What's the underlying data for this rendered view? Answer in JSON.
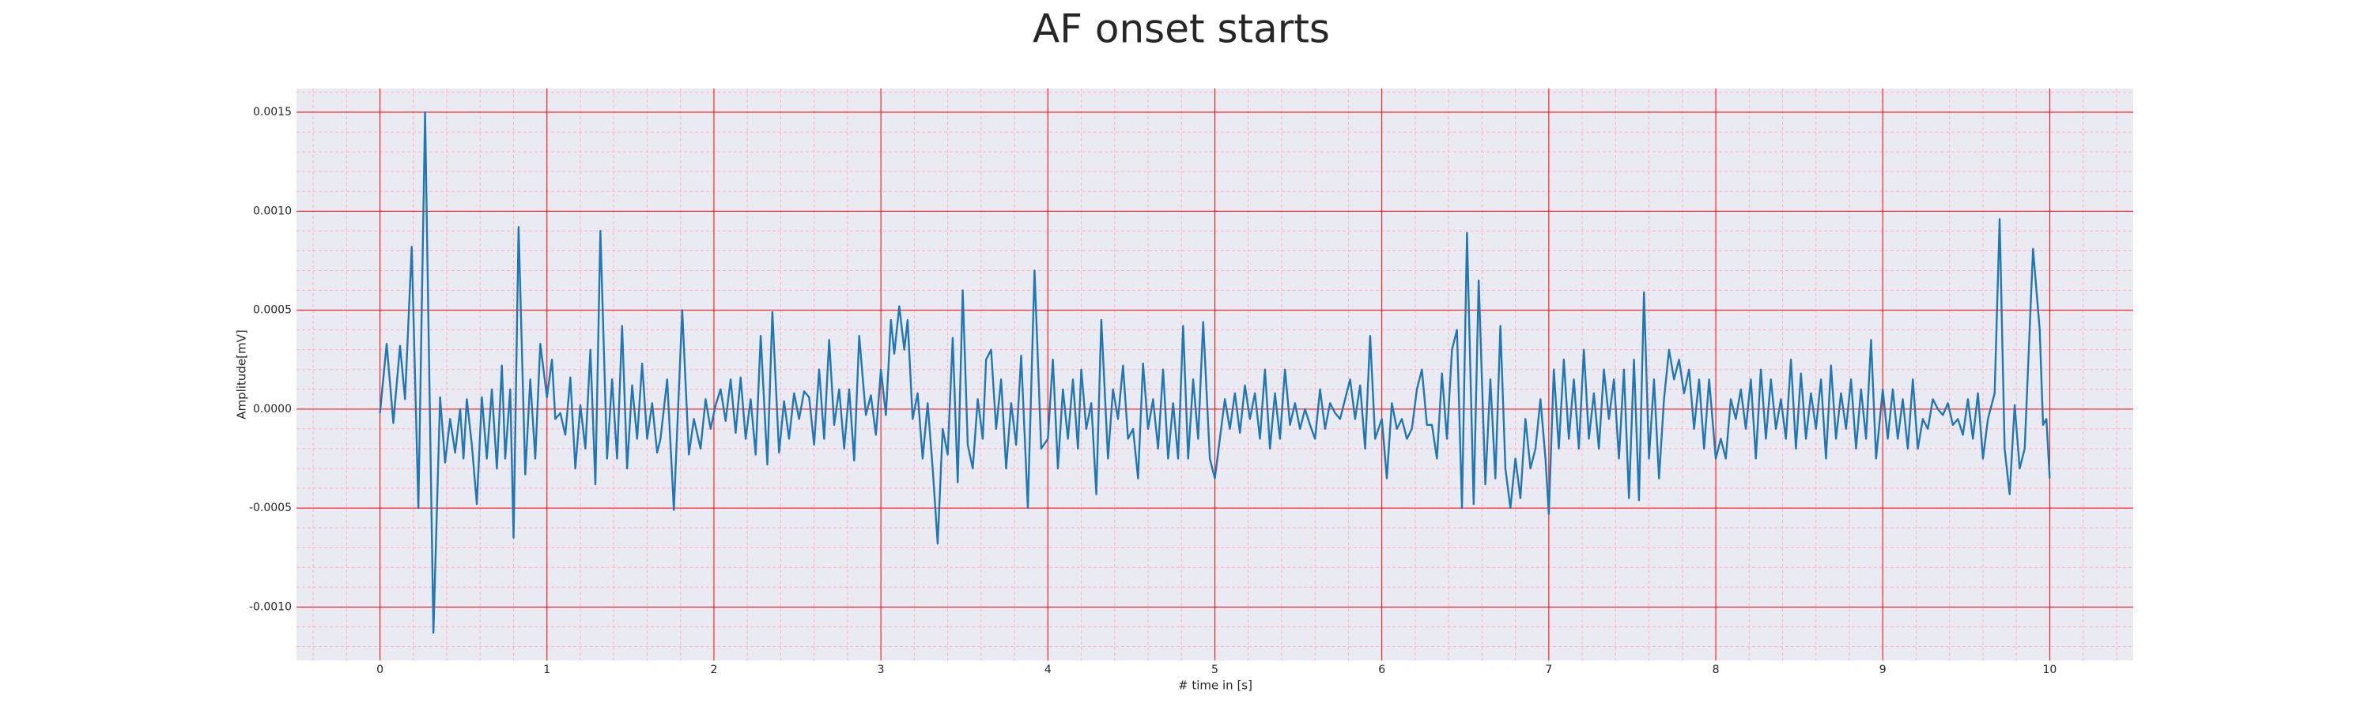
{
  "chart_data": {
    "type": "line",
    "title": "AF onset starts",
    "x_label": "# time in [s]",
    "y_label": "Amplitude[mV]",
    "xlim": [
      -0.5,
      10.5
    ],
    "ylim": [
      -0.00127,
      0.00162
    ],
    "xticks": [
      0,
      1,
      2,
      3,
      4,
      5,
      6,
      7,
      8,
      9,
      10
    ],
    "yticks": [
      {
        "value": -0.001,
        "label": "-0.0010"
      },
      -0.0005,
      {
        "value": 0,
        "label": "0.0000"
      },
      0.0005,
      {
        "value": 0.001,
        "label": "0.0010"
      },
      0.0015
    ],
    "grid": true,
    "minor_grid": true,
    "grid_color": "#ff0000",
    "minor_grid_color": "#ffb3c0",
    "background": "#eaeaf2",
    "series": [
      {
        "color": "#1f77b4",
        "x": [
          0.0,
          0.04,
          0.08,
          0.12,
          0.15,
          0.19,
          0.23,
          0.27,
          0.32,
          0.36,
          0.39,
          0.42,
          0.45,
          0.48,
          0.5,
          0.52,
          0.55,
          0.58,
          0.61,
          0.64,
          0.67,
          0.7,
          0.73,
          0.75,
          0.78,
          0.8,
          0.83,
          0.87,
          0.9,
          0.93,
          0.96,
          1.0,
          1.03,
          1.05,
          1.08,
          1.11,
          1.14,
          1.17,
          1.2,
          1.23,
          1.26,
          1.29,
          1.32,
          1.36,
          1.39,
          1.42,
          1.45,
          1.48,
          1.51,
          1.54,
          1.57,
          1.6,
          1.63,
          1.66,
          1.68,
          1.72,
          1.76,
          1.81,
          1.85,
          1.88,
          1.92,
          1.95,
          1.98,
          2.01,
          2.04,
          2.07,
          2.1,
          2.13,
          2.16,
          2.19,
          2.22,
          2.25,
          2.28,
          2.32,
          2.35,
          2.39,
          2.42,
          2.45,
          2.48,
          2.51,
          2.54,
          2.57,
          2.6,
          2.63,
          2.66,
          2.69,
          2.72,
          2.75,
          2.78,
          2.81,
          2.84,
          2.87,
          2.91,
          2.94,
          2.97,
          3.0,
          3.03,
          3.06,
          3.08,
          3.11,
          3.14,
          3.16,
          3.19,
          3.22,
          3.25,
          3.28,
          3.31,
          3.34,
          3.37,
          3.4,
          3.43,
          3.46,
          3.49,
          3.52,
          3.55,
          3.58,
          3.61,
          3.63,
          3.66,
          3.69,
          3.72,
          3.75,
          3.78,
          3.81,
          3.84,
          3.88,
          3.92,
          3.96,
          4.0,
          4.03,
          4.06,
          4.09,
          4.12,
          4.15,
          4.18,
          4.2,
          4.23,
          4.26,
          4.29,
          4.32,
          4.36,
          4.39,
          4.42,
          4.45,
          4.48,
          4.51,
          4.54,
          4.57,
          4.6,
          4.63,
          4.66,
          4.69,
          4.72,
          4.75,
          4.78,
          4.81,
          4.84,
          4.87,
          4.9,
          4.93,
          4.97,
          5.0,
          5.03,
          5.06,
          5.09,
          5.12,
          5.15,
          5.18,
          5.21,
          5.24,
          5.27,
          5.3,
          5.33,
          5.36,
          5.39,
          5.42,
          5.45,
          5.48,
          5.51,
          5.54,
          5.57,
          5.6,
          5.63,
          5.66,
          5.69,
          5.72,
          5.75,
          5.78,
          5.81,
          5.84,
          5.87,
          5.9,
          5.93,
          5.96,
          6.0,
          6.03,
          6.06,
          6.09,
          6.12,
          6.15,
          6.18,
          6.21,
          6.24,
          6.27,
          6.3,
          6.33,
          6.36,
          6.39,
          6.42,
          6.45,
          6.48,
          6.51,
          6.55,
          6.58,
          6.62,
          6.65,
          6.68,
          6.71,
          6.74,
          6.77,
          6.8,
          6.83,
          6.86,
          6.89,
          6.92,
          6.95,
          6.98,
          7.0,
          7.03,
          7.06,
          7.09,
          7.12,
          7.15,
          7.18,
          7.21,
          7.24,
          7.27,
          7.3,
          7.33,
          7.36,
          7.39,
          7.42,
          7.45,
          7.48,
          7.51,
          7.54,
          7.57,
          7.6,
          7.63,
          7.66,
          7.69,
          7.72,
          7.75,
          7.78,
          7.81,
          7.84,
          7.87,
          7.9,
          7.93,
          7.96,
          8.0,
          8.03,
          8.06,
          8.09,
          8.12,
          8.15,
          8.18,
          8.21,
          8.24,
          8.27,
          8.3,
          8.33,
          8.36,
          8.39,
          8.42,
          8.45,
          8.48,
          8.51,
          8.54,
          8.57,
          8.6,
          8.63,
          8.66,
          8.69,
          8.72,
          8.75,
          8.78,
          8.81,
          8.84,
          8.87,
          8.9,
          8.93,
          8.96,
          9.0,
          9.03,
          9.06,
          9.09,
          9.12,
          9.15,
          9.18,
          9.21,
          9.24,
          9.27,
          9.3,
          9.33,
          9.36,
          9.39,
          9.42,
          9.45,
          9.48,
          9.51,
          9.54,
          9.57,
          9.6,
          9.63,
          9.67,
          9.7,
          9.73,
          9.76,
          9.79,
          9.82,
          9.85,
          9.9,
          9.94,
          9.96,
          9.98,
          10.0
        ],
        "values": [
          -2e-05,
          0.00033,
          -7e-05,
          0.00032,
          5e-05,
          0.00082,
          -0.0005,
          0.0015,
          -0.00113,
          6e-05,
          -0.00027,
          -5e-05,
          -0.00022,
          0,
          -0.00025,
          5e-05,
          -0.00018,
          -0.00048,
          6e-05,
          -0.00025,
          0.0001,
          -0.0003,
          0.00022,
          -0.00025,
          0.0001,
          -0.00065,
          0.00092,
          -0.00033,
          0.00015,
          -0.00025,
          0.00033,
          6e-05,
          0.00025,
          -5e-05,
          -2e-05,
          -0.00013,
          0.00016,
          -0.0003,
          2e-05,
          -0.0002,
          0.0003,
          -0.00038,
          0.0009,
          -0.00025,
          0.00015,
          -0.00025,
          0.00042,
          -0.0003,
          0.00012,
          -0.00015,
          0.00023,
          -0.00015,
          3e-05,
          -0.00022,
          -0.00015,
          0.00015,
          -0.00051,
          0.0005,
          -0.00023,
          -5e-05,
          -0.0002,
          5e-05,
          -0.0001,
          2e-05,
          0.0001,
          -6e-05,
          0.00015,
          -0.00012,
          0.00016,
          -0.00015,
          5e-05,
          -0.00023,
          0.00037,
          -0.00028,
          0.00049,
          -0.00022,
          4e-05,
          -0.00015,
          8e-05,
          -5e-05,
          9e-05,
          6e-05,
          -0.00018,
          0.0002,
          -0.00015,
          0.00035,
          -8e-05,
          0.0001,
          -0.0002,
          0.0001,
          -0.00026,
          0.00037,
          -3e-05,
          7e-05,
          -0.00013,
          0.0002,
          -3e-05,
          0.00045,
          0.00028,
          0.00052,
          0.0003,
          0.00045,
          -5e-05,
          8e-05,
          -0.00025,
          3e-05,
          -0.0003,
          -0.00068,
          -0.0001,
          -0.00023,
          0.00036,
          -0.00037,
          0.0006,
          -0.00018,
          -0.0003,
          5e-05,
          -0.00015,
          0.00025,
          0.0003,
          -0.0001,
          0.00015,
          -0.0003,
          3e-05,
          -0.00018,
          0.00027,
          -0.0005,
          0.0007,
          -0.0002,
          -0.00015,
          0.00025,
          -0.0003,
          0.0001,
          -0.00015,
          0.00015,
          -0.0002,
          0.0002,
          -0.0001,
          3e-05,
          -0.00043,
          0.00045,
          -0.00025,
          0.0001,
          -5e-05,
          0.00022,
          -0.00015,
          -0.0001,
          -0.00035,
          0.00023,
          -0.0001,
          5e-05,
          -0.0002,
          0.0002,
          -0.00025,
          3e-05,
          -0.00025,
          0.00042,
          -0.00025,
          0.00015,
          -0.00015,
          0.00044,
          -0.00025,
          -0.00035,
          -0.00015,
          5e-05,
          -0.0001,
          8e-05,
          -0.00012,
          0.00012,
          -5e-05,
          8e-05,
          -0.00015,
          0.0002,
          -0.0002,
          8e-05,
          -0.00015,
          0.0002,
          -8e-05,
          3e-05,
          -0.0001,
          0,
          -8e-05,
          -0.00015,
          0.0001,
          -0.0001,
          3e-05,
          -2e-05,
          -5e-05,
          5e-05,
          0.00015,
          -5e-05,
          0.00012,
          -0.0002,
          0.00037,
          -0.00015,
          -5e-05,
          -0.00035,
          3e-05,
          -0.0001,
          -5e-05,
          -0.00015,
          -0.0001,
          0.0001,
          0.0002,
          -8e-05,
          -8e-05,
          -0.00025,
          0.00018,
          -0.00015,
          0.0003,
          0.0004,
          -0.0005,
          0.00089,
          -0.00048,
          0.00065,
          -0.00038,
          0.00015,
          -0.00035,
          0.00042,
          -0.0003,
          -0.0005,
          -0.00025,
          -0.00045,
          -5e-05,
          -0.0003,
          -0.0002,
          5e-05,
          -0.00025,
          -0.00053,
          0.0002,
          -0.0002,
          0.00025,
          -0.00015,
          0.00015,
          -0.0002,
          0.0003,
          -0.00015,
          8e-05,
          -0.0002,
          0.0002,
          -5e-05,
          0.00015,
          -0.00025,
          0.0002,
          -0.00045,
          0.00025,
          -0.00046,
          0.00059,
          -0.00025,
          0.00015,
          -0.00035,
          5e-05,
          0.0003,
          0.00015,
          0.00025,
          8e-05,
          0.0002,
          -0.0001,
          0.00015,
          -0.0002,
          0.00015,
          -0.00025,
          -0.00015,
          -0.00025,
          5e-05,
          -5e-05,
          0.0001,
          -0.0001,
          0.00015,
          -0.00025,
          0.0002,
          -0.00015,
          0.00015,
          -0.0001,
          5e-05,
          -0.00015,
          0.00025,
          -0.0002,
          0.00018,
          -0.00015,
          8e-05,
          -0.0001,
          0.00015,
          -0.00025,
          0.00022,
          -0.00015,
          8e-05,
          -0.0001,
          0.00015,
          -0.0002,
          0.0001,
          -0.00015,
          0.00035,
          -0.00025,
          0.0001,
          -0.00015,
          0.0001,
          -0.00015,
          5e-05,
          -0.0002,
          0.00015,
          -0.0002,
          -5e-05,
          -0.0001,
          5e-05,
          0,
          -3e-05,
          3e-05,
          -8e-05,
          -5e-05,
          -0.00013,
          5e-05,
          -0.00015,
          8e-05,
          -0.00025,
          -5e-05,
          8e-05,
          0.00096,
          -0.0002,
          -0.00043,
          2e-05,
          -0.0003,
          -0.0002,
          0.00081,
          0.0004,
          -8e-05,
          -5e-05,
          -0.00035
        ]
      }
    ]
  }
}
